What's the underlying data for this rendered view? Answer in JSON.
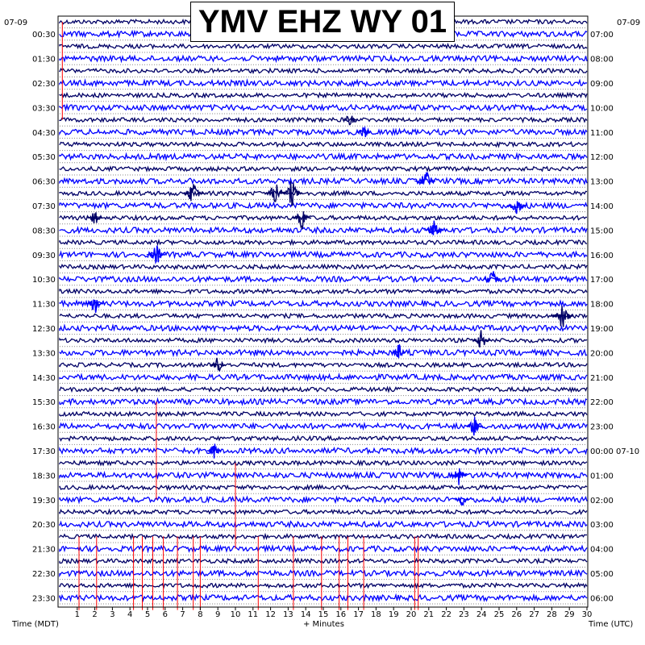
{
  "title": "YMV EHZ WY 01",
  "left_date": "07-09",
  "right_date": "07-09",
  "left_axis_label": "Time (MDT)",
  "right_axis_label": "Time (UTC)",
  "x_axis_label": "+ Minutes",
  "colors": {
    "trace_dark": "#000066",
    "trace_bright": "#0000ff",
    "event_red": "#ff0000",
    "frame": "#000000",
    "dots": "#888888"
  },
  "chart_data": {
    "type": "helicorder",
    "rows_per_hour": 2,
    "row_count": 48,
    "minutes_per_row": 30,
    "xlim": [
      0,
      30
    ],
    "x_ticks": [
      "1",
      "2",
      "3",
      "4",
      "5",
      "6",
      "7",
      "8",
      "9",
      "10",
      "11",
      "12",
      "13",
      "14",
      "15",
      "16",
      "17",
      "18",
      "19",
      "20",
      "21",
      "22",
      "23",
      "24",
      "25",
      "26",
      "27",
      "28",
      "29",
      "30"
    ],
    "left_labels": [
      "00:30",
      "01:30",
      "02:30",
      "03:30",
      "04:30",
      "05:30",
      "06:30",
      "07:30",
      "08:30",
      "09:30",
      "10:30",
      "11:30",
      "12:30",
      "13:30",
      "14:30",
      "15:30",
      "16:30",
      "17:30",
      "18:30",
      "19:30",
      "20:30",
      "21:30",
      "22:30",
      "23:30"
    ],
    "right_labels": [
      "07:00",
      "08:00",
      "09:00",
      "10:00",
      "11:00",
      "12:00",
      "13:00",
      "14:00",
      "15:00",
      "16:00",
      "17:00",
      "18:00",
      "19:00",
      "20:00",
      "21:00",
      "22:00",
      "23:00",
      "00:00 07-10",
      "01:00",
      "02:00",
      "03:00",
      "04:00",
      "05:00",
      "06:00"
    ],
    "row_colors": [
      "dark",
      "bright",
      "dark",
      "bright"
    ],
    "events": [
      {
        "row": 8,
        "minute": 16.5,
        "amp": 0.5
      },
      {
        "row": 9,
        "minute": 17.3,
        "amp": 0.5
      },
      {
        "row": 13,
        "minute": 20.8,
        "amp": 0.9
      },
      {
        "row": 14,
        "minute": 7.6,
        "amp": 1.0
      },
      {
        "row": 14,
        "minute": 12.3,
        "amp": 1.0
      },
      {
        "row": 14,
        "minute": 13.2,
        "amp": 1.0
      },
      {
        "row": 15,
        "minute": 26.0,
        "amp": 0.8
      },
      {
        "row": 16,
        "minute": 2.0,
        "amp": 0.5
      },
      {
        "row": 16,
        "minute": 13.8,
        "amp": 0.8
      },
      {
        "row": 17,
        "minute": 21.3,
        "amp": 0.8
      },
      {
        "row": 19,
        "minute": 5.5,
        "amp": 0.8
      },
      {
        "row": 21,
        "minute": 24.6,
        "amp": 0.7
      },
      {
        "row": 23,
        "minute": 2.0,
        "amp": 0.7
      },
      {
        "row": 24,
        "minute": 28.6,
        "amp": 1.0
      },
      {
        "row": 26,
        "minute": 24.0,
        "amp": 0.7
      },
      {
        "row": 27,
        "minute": 19.3,
        "amp": 0.5
      },
      {
        "row": 28,
        "minute": 9.0,
        "amp": 0.6
      },
      {
        "row": 33,
        "minute": 23.6,
        "amp": 0.7
      },
      {
        "row": 35,
        "minute": 8.8,
        "amp": 0.5
      },
      {
        "row": 37,
        "minute": 22.7,
        "amp": 0.7
      },
      {
        "row": 39,
        "minute": 22.9,
        "amp": 0.5
      }
    ],
    "spikes": [
      {
        "row": 0,
        "minute": 0.15,
        "rows": 8
      },
      {
        "row": 31,
        "minute": 5.5,
        "rows": 8
      },
      {
        "row": 36,
        "minute": 10.0,
        "rows": 7
      },
      {
        "row": 42,
        "minute": 1.1,
        "rows": 6
      },
      {
        "row": 42,
        "minute": 2.1,
        "rows": 6
      },
      {
        "row": 42,
        "minute": 4.2,
        "rows": 6
      },
      {
        "row": 42,
        "minute": 4.7,
        "rows": 6
      },
      {
        "row": 42,
        "minute": 5.3,
        "rows": 6
      },
      {
        "row": 42,
        "minute": 5.9,
        "rows": 6
      },
      {
        "row": 42,
        "minute": 6.7,
        "rows": 6
      },
      {
        "row": 42,
        "minute": 7.6,
        "rows": 6
      },
      {
        "row": 42,
        "minute": 8.0,
        "rows": 6
      },
      {
        "row": 42,
        "minute": 11.3,
        "rows": 6
      },
      {
        "row": 42,
        "minute": 13.3,
        "rows": 6
      },
      {
        "row": 42,
        "minute": 14.9,
        "rows": 6
      },
      {
        "row": 42,
        "minute": 15.9,
        "rows": 6
      },
      {
        "row": 42,
        "minute": 16.4,
        "rows": 6
      },
      {
        "row": 42,
        "minute": 17.3,
        "rows": 6
      },
      {
        "row": 42,
        "minute": 20.2,
        "rows": 6
      },
      {
        "row": 42,
        "minute": 20.4,
        "rows": 6
      }
    ]
  }
}
